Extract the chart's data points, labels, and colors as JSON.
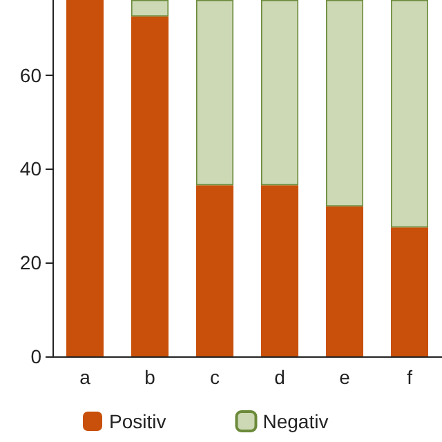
{
  "chart_data": {
    "type": "bar",
    "stacked": true,
    "categories": [
      "a",
      "b",
      "c",
      "d",
      "e",
      "f"
    ],
    "series": [
      {
        "name": "Positiv",
        "color": "#c8500a",
        "values": [
          76,
          72.5,
          36.5,
          36.5,
          32,
          27.5
        ]
      },
      {
        "name": "Negativ",
        "color": "#cdd8b4",
        "values": [
          null,
          3.5,
          39.5,
          39.5,
          44,
          48.5
        ]
      }
    ],
    "ylim": [
      0,
      76
    ],
    "yticks": [
      0,
      20,
      40,
      60
    ],
    "grid": false,
    "legend": "bottom"
  }
}
